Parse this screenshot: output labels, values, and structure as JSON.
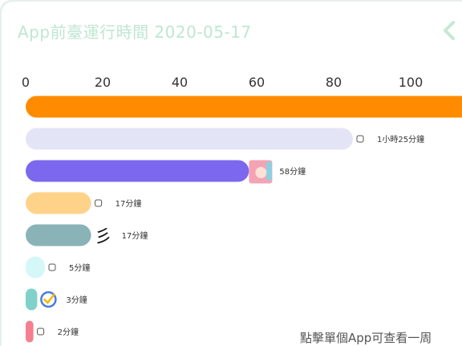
{
  "header": {
    "title": "App前臺運行時間 2020-05-17"
  },
  "footer": {
    "hint": "點擊單個App可查看一周"
  },
  "colors": {
    "title": "#bfe6d3",
    "back": "#c4e9d6"
  },
  "icons": [
    "chevron-left-icon"
  ],
  "chart_data": {
    "type": "bar",
    "orientation": "horizontal",
    "xlim": [
      0,
      115
    ],
    "ticks": [
      0,
      20,
      40,
      60,
      80,
      100
    ],
    "grid": false,
    "bars": [
      {
        "value": 120,
        "label": "",
        "color": "#ff8c00",
        "icon": "app-icon-orange"
      },
      {
        "value": 85,
        "label": "1小時25分鐘",
        "color": "#e4e4f7",
        "icon": "app-icon-lavender"
      },
      {
        "value": 58,
        "label": "58分鐘",
        "color": "#7b68ee",
        "icon": "app-icon-anime-avatar"
      },
      {
        "value": 17,
        "label": "17分鐘",
        "color": "#ffd28a",
        "icon": "app-icon-crown"
      },
      {
        "value": 17,
        "label": "17分鐘",
        "color": "#8ab3b8",
        "icon": "app-icon-calligraphy"
      },
      {
        "value": 5,
        "label": "5分鐘",
        "color": "#d6f7f7",
        "icon": "app-icon-flag"
      },
      {
        "value": 3,
        "label": "3分鐘",
        "color": "#7fd1c9",
        "icon": "app-icon-checkmark"
      },
      {
        "value": 2,
        "label": "2分鐘",
        "color": "#f47f8e",
        "icon": "app-icon-document"
      }
    ]
  }
}
